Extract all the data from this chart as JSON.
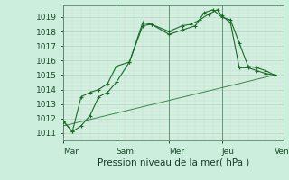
{
  "title": "",
  "xlabel": "Pression niveau de la mer( hPa )",
  "ylabel": "",
  "background_color": "#cceedd",
  "plot_bg_color": "#d4eedf",
  "grid_color": "#b8ddc8",
  "line_color": "#1a6b2a",
  "xlim": [
    0,
    100
  ],
  "ylim": [
    1010.5,
    1019.8
  ],
  "yticks": [
    1011,
    1012,
    1013,
    1014,
    1015,
    1016,
    1017,
    1018,
    1019
  ],
  "xtick_positions": [
    0,
    24,
    48,
    72,
    96
  ],
  "xtick_labels": [
    "Mar",
    "Sam",
    "Mer",
    "Jeu",
    "Ven"
  ],
  "vlines": [
    0,
    24,
    48,
    72,
    96
  ],
  "series1": {
    "x": [
      0,
      4,
      8,
      12,
      16,
      20,
      24,
      30,
      36,
      40,
      48,
      54,
      60,
      64,
      68,
      72,
      76,
      80,
      84,
      88,
      92,
      96
    ],
    "y": [
      1011.8,
      1011.1,
      1011.5,
      1012.2,
      1013.5,
      1013.8,
      1014.5,
      1015.9,
      1018.4,
      1018.5,
      1017.8,
      1018.1,
      1018.4,
      1019.3,
      1019.5,
      1019.0,
      1018.8,
      1017.2,
      1015.6,
      1015.5,
      1015.3,
      1015.0
    ]
  },
  "series2": {
    "x": [
      0,
      4,
      8,
      12,
      16,
      20,
      24,
      30,
      36,
      40,
      48,
      54,
      58,
      62,
      66,
      70,
      72,
      76,
      80,
      84,
      88,
      92,
      96
    ],
    "y": [
      1011.8,
      1011.1,
      1013.5,
      1013.8,
      1014.0,
      1014.4,
      1015.6,
      1015.9,
      1018.6,
      1018.5,
      1018.0,
      1018.4,
      1018.5,
      1018.8,
      1019.2,
      1019.5,
      1019.1,
      1018.6,
      1015.5,
      1015.5,
      1015.3,
      1015.1,
      1015.0
    ]
  },
  "series3": {
    "x": [
      0,
      96
    ],
    "y": [
      1011.5,
      1015.0
    ]
  }
}
